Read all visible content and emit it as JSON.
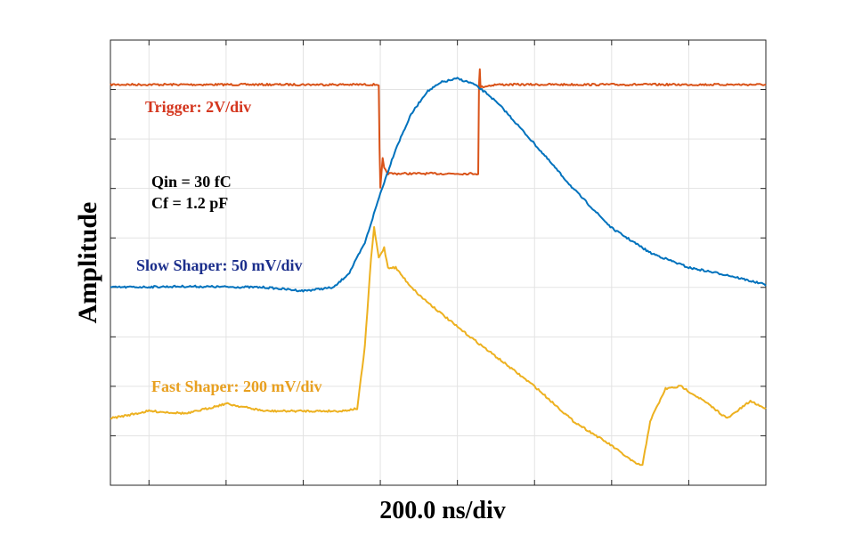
{
  "chart_data": {
    "type": "line",
    "title": "",
    "xlabel": "200.0 ns/div",
    "ylabel": "Amplitude",
    "x_divisions": 8.5,
    "y_divisions": 9,
    "xlim": [
      0,
      8.5
    ],
    "ylim": [
      0,
      9
    ],
    "grid": true,
    "legend": "none",
    "annotations": [
      {
        "text": "Trigger: 2V/div",
        "color": "#d4361e"
      },
      {
        "text": "Qin = 30 fC",
        "color": "#000000"
      },
      {
        "text": "Cf = 1.2 pF",
        "color": "#000000"
      },
      {
        "text": "Slow Shaper: 50 mV/div",
        "color": "#1c2f8c"
      },
      {
        "text": "Fast Shaper: 200 mV/div",
        "color": "#e8a020"
      }
    ],
    "series": [
      {
        "color": "#d95319",
        "points": [
          [
            0,
            8.1
          ],
          [
            3.48,
            8.1
          ],
          [
            3.49,
            6.8
          ],
          [
            3.5,
            6.0
          ],
          [
            3.53,
            6.6
          ],
          [
            3.55,
            6.4
          ],
          [
            3.6,
            6.3
          ],
          [
            4.0,
            6.3
          ],
          [
            4.4,
            6.3
          ],
          [
            4.77,
            6.3
          ],
          [
            4.78,
            8.1
          ],
          [
            4.79,
            8.4
          ],
          [
            4.8,
            8.05
          ],
          [
            5.0,
            8.1
          ],
          [
            8.5,
            8.1
          ]
        ]
      },
      {
        "color": "#0072bd",
        "points": [
          [
            0,
            4.0
          ],
          [
            1.0,
            4.02
          ],
          [
            2.0,
            4.0
          ],
          [
            2.5,
            3.93
          ],
          [
            2.9,
            4.0
          ],
          [
            3.1,
            4.3
          ],
          [
            3.3,
            4.9
          ],
          [
            3.5,
            5.9
          ],
          [
            3.7,
            6.8
          ],
          [
            3.9,
            7.5
          ],
          [
            4.1,
            7.95
          ],
          [
            4.3,
            8.15
          ],
          [
            4.5,
            8.22
          ],
          [
            4.7,
            8.12
          ],
          [
            4.9,
            7.9
          ],
          [
            5.1,
            7.6
          ],
          [
            5.5,
            6.9
          ],
          [
            6.0,
            6.0
          ],
          [
            6.5,
            5.2
          ],
          [
            7.0,
            4.7
          ],
          [
            7.5,
            4.4
          ],
          [
            8.0,
            4.25
          ],
          [
            8.5,
            4.05
          ]
        ]
      },
      {
        "color": "#edb120",
        "points": [
          [
            0,
            1.35
          ],
          [
            0.5,
            1.5
          ],
          [
            1.0,
            1.45
          ],
          [
            1.5,
            1.65
          ],
          [
            2.0,
            1.5
          ],
          [
            2.5,
            1.5
          ],
          [
            3.0,
            1.5
          ],
          [
            3.2,
            1.55
          ],
          [
            3.3,
            2.8
          ],
          [
            3.38,
            4.6
          ],
          [
            3.42,
            5.2
          ],
          [
            3.48,
            4.6
          ],
          [
            3.55,
            4.8
          ],
          [
            3.6,
            4.4
          ],
          [
            3.7,
            4.4
          ],
          [
            3.85,
            4.1
          ],
          [
            4.0,
            3.85
          ],
          [
            4.5,
            3.2
          ],
          [
            5.0,
            2.6
          ],
          [
            5.5,
            2.0
          ],
          [
            6.0,
            1.3
          ],
          [
            6.5,
            0.8
          ],
          [
            6.8,
            0.45
          ],
          [
            6.9,
            0.4
          ],
          [
            7.0,
            1.3
          ],
          [
            7.2,
            1.95
          ],
          [
            7.4,
            2.0
          ],
          [
            7.7,
            1.7
          ],
          [
            8.0,
            1.35
          ],
          [
            8.3,
            1.7
          ],
          [
            8.5,
            1.55
          ]
        ]
      }
    ]
  }
}
